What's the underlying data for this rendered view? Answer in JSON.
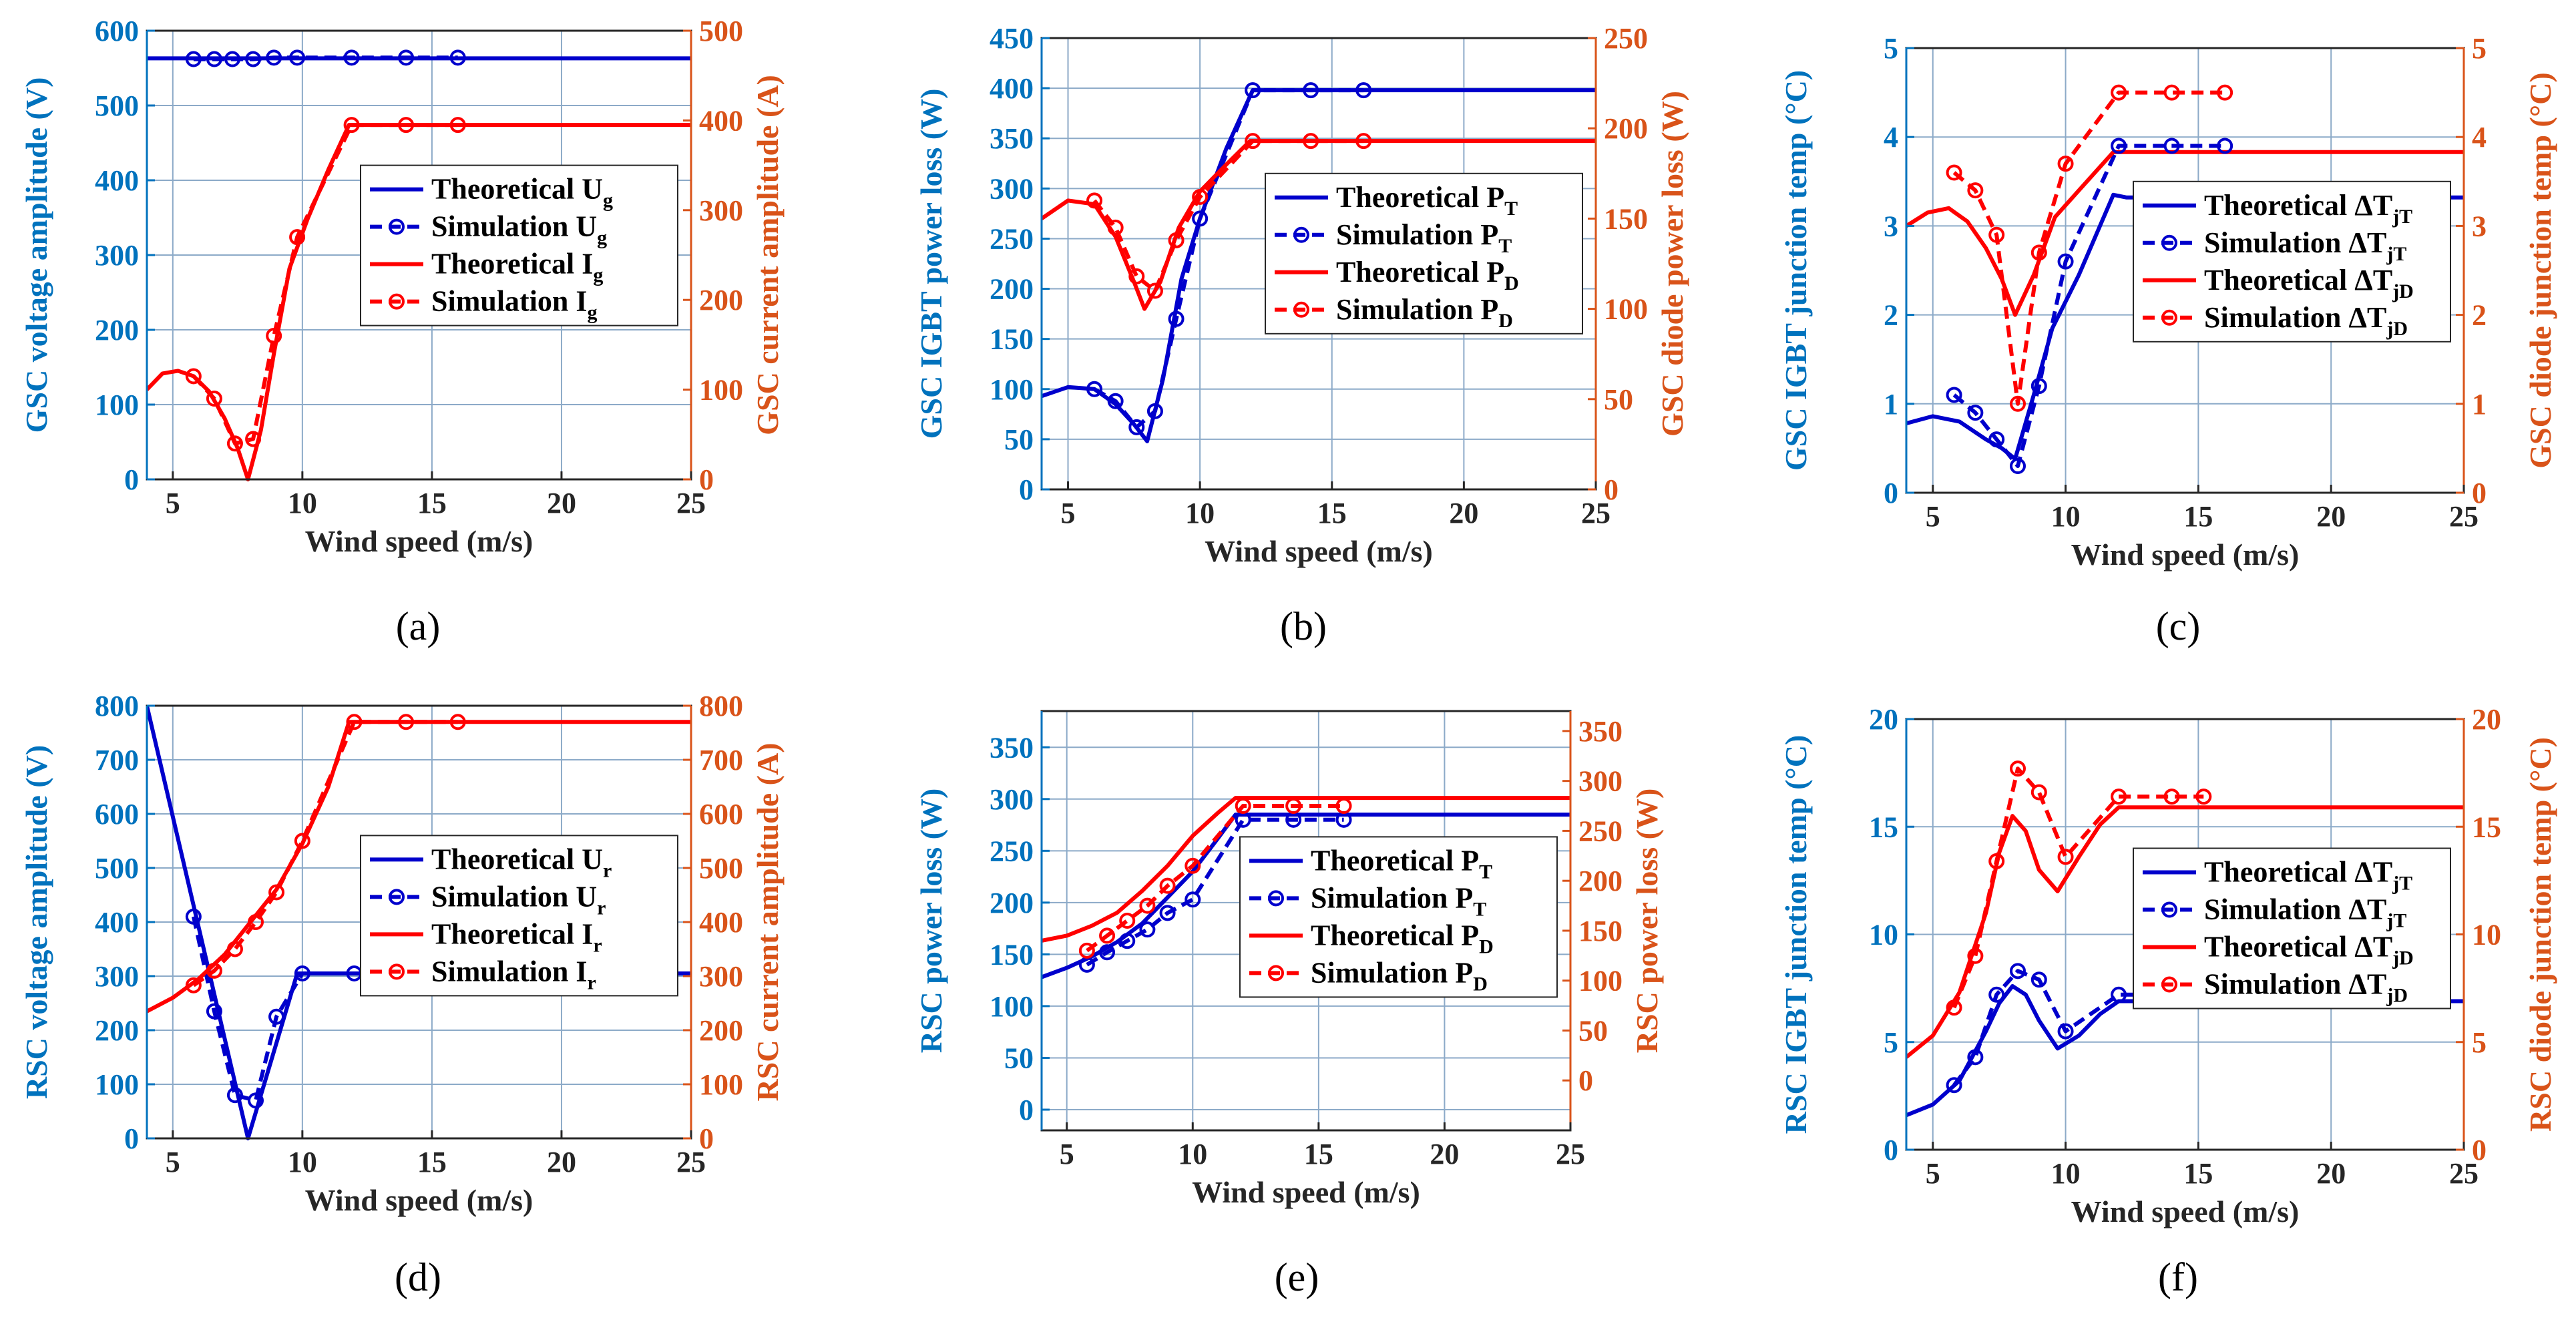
{
  "colors": {
    "blue": "#0000cc",
    "red": "#ff0000",
    "left_axis": "#0072bd",
    "right_axis": "#d95319",
    "grid": "#8caac8"
  },
  "chart_data": [
    {
      "panel": "(a)",
      "type": "line",
      "xlabel": "Wind speed (m/s)",
      "xlim": [
        4,
        25
      ],
      "xticks": [
        5,
        10,
        15,
        20,
        25
      ],
      "ylabel_left": "GSC voltage amplitude (V)",
      "ylim_left": [
        0,
        600
      ],
      "yticks_left": [
        0,
        100,
        200,
        300,
        400,
        500,
        600
      ],
      "ylabel_right": "GSC current amplitude (A)",
      "ylim_right": [
        0,
        500
      ],
      "yticks_right": [
        0,
        100,
        200,
        300,
        400,
        500
      ],
      "legend_position": "center-right",
      "series": [
        {
          "name": "Theoretical U",
          "sub": "g",
          "axis": "left",
          "color": "blue",
          "style": "solid",
          "x": [
            4,
            25
          ],
          "y": [
            563,
            563
          ]
        },
        {
          "name": "Simulation U",
          "sub": "g",
          "axis": "left",
          "color": "blue",
          "style": "dashed",
          "markers": true,
          "x": [
            5.8,
            6.6,
            7.3,
            8.1,
            8.9,
            9.8,
            11.9,
            14,
            16
          ],
          "y": [
            562,
            562,
            562,
            562,
            564,
            564,
            564,
            564,
            564
          ]
        },
        {
          "name": "Theoretical I",
          "sub": "g",
          "axis": "right",
          "color": "red",
          "style": "solid",
          "x": [
            4,
            4.6,
            5.2,
            5.8,
            6.4,
            7,
            7.5,
            7.9,
            8.4,
            8.9,
            9.5,
            10.2,
            11,
            11.8,
            12.5,
            25
          ],
          "y": [
            100,
            118,
            121,
            115,
            98,
            68,
            35,
            0,
            55,
            140,
            235,
            290,
            345,
            395,
            395,
            395
          ]
        },
        {
          "name": "Simulation I",
          "sub": "g",
          "axis": "right",
          "color": "red",
          "style": "dashed",
          "markers": true,
          "x": [
            5.8,
            6.6,
            7.4,
            8.1,
            8.9,
            9.8,
            11.9,
            14,
            16
          ],
          "y": [
            115,
            90,
            40,
            45,
            160,
            270,
            395,
            395,
            395
          ]
        }
      ]
    },
    {
      "panel": "(b)",
      "type": "line",
      "xlabel": "Wind speed (m/s)",
      "xlim": [
        4,
        25
      ],
      "xticks": [
        5,
        10,
        15,
        20,
        25
      ],
      "ylabel_left": "GSC IGBT power loss (W)",
      "ylim_left": [
        0,
        450
      ],
      "yticks_left": [
        0,
        50,
        100,
        150,
        200,
        250,
        300,
        350,
        400,
        450
      ],
      "ylabel_right": "GSC diode power loss (W)",
      "ylim_right": [
        0,
        250
      ],
      "yticks_right": [
        0,
        50,
        100,
        150,
        200,
        250
      ],
      "legend_position": "center-right",
      "series": [
        {
          "name": "Theoretical P",
          "sub": "T",
          "axis": "left",
          "color": "blue",
          "style": "solid",
          "x": [
            4,
            5,
            6,
            6.8,
            7.5,
            8,
            8.6,
            9.3,
            10,
            11,
            12,
            25
          ],
          "y": [
            93,
            102,
            100,
            85,
            65,
            48,
            110,
            210,
            270,
            340,
            398,
            398
          ]
        },
        {
          "name": "Simulation P",
          "sub": "T",
          "axis": "left",
          "color": "blue",
          "style": "dashed",
          "markers": true,
          "x": [
            6,
            6.8,
            7.6,
            8.3,
            9.1,
            10,
            12,
            14.2,
            16.2
          ],
          "y": [
            100,
            88,
            62,
            78,
            170,
            270,
            398,
            398,
            398
          ]
        },
        {
          "name": "Theoretical P",
          "sub": "D",
          "axis": "right",
          "color": "red",
          "style": "solid",
          "x": [
            4,
            5,
            6,
            6.8,
            7.5,
            7.9,
            8.5,
            9.2,
            10,
            11,
            11.9,
            25
          ],
          "y": [
            150,
            160,
            158,
            140,
            115,
            100,
            115,
            145,
            165,
            180,
            193,
            193
          ]
        },
        {
          "name": "Simulation P",
          "sub": "D",
          "axis": "right",
          "color": "red",
          "style": "dashed",
          "markers": true,
          "x": [
            6,
            6.8,
            7.6,
            8.3,
            9.1,
            10,
            12,
            14.2,
            16.2
          ],
          "y": [
            160,
            145,
            118,
            110,
            138,
            162,
            193,
            193,
            193
          ]
        }
      ]
    },
    {
      "panel": "(c)",
      "type": "line",
      "xlabel": "Wind speed (m/s)",
      "xlim": [
        4,
        25
      ],
      "xticks": [
        5,
        10,
        15,
        20,
        25
      ],
      "ylabel_left": "GSC IGBT junction temp (°C)",
      "ylim_left": [
        0,
        5
      ],
      "yticks_left": [
        0,
        1,
        2,
        3,
        4,
        5
      ],
      "ylabel_right": "GSC diode junction temp (°C)",
      "ylim_right": [
        0,
        5
      ],
      "yticks_right": [
        0,
        1,
        2,
        3,
        4,
        5
      ],
      "legend_position": "center-right",
      "series": [
        {
          "name": "Theoretical ΔT",
          "sub": "jT",
          "axis": "left",
          "color": "blue",
          "style": "solid",
          "x": [
            4,
            5,
            6,
            7,
            7.6,
            8.1,
            8.8,
            9.5,
            10.5,
            11.8,
            12.3,
            25
          ],
          "y": [
            0.78,
            0.86,
            0.8,
            0.6,
            0.5,
            0.38,
            1.1,
            1.85,
            2.45,
            3.35,
            3.32,
            3.32
          ]
        },
        {
          "name": "Simulation ΔT",
          "sub": "jT",
          "axis": "left",
          "color": "blue",
          "style": "dashed",
          "markers": true,
          "x": [
            5.8,
            6.6,
            7.4,
            8.2,
            9,
            10,
            12,
            14,
            16
          ],
          "y": [
            1.1,
            0.9,
            0.6,
            0.3,
            1.2,
            2.6,
            3.9,
            3.9,
            3.9
          ]
        },
        {
          "name": "Theoretical ΔT",
          "sub": "jD",
          "axis": "right",
          "color": "red",
          "style": "solid",
          "x": [
            4,
            4.8,
            5.6,
            6.3,
            7,
            7.6,
            8.1,
            8.8,
            9.6,
            10.5,
            11.8,
            25
          ],
          "y": [
            3,
            3.15,
            3.2,
            3.05,
            2.75,
            2.4,
            2.0,
            2.45,
            3.1,
            3.4,
            3.83,
            3.83
          ]
        },
        {
          "name": "Simulation ΔT",
          "sub": "jD",
          "axis": "right",
          "color": "red",
          "style": "dashed",
          "markers": true,
          "x": [
            5.8,
            6.6,
            7.4,
            8.2,
            9,
            10,
            12,
            14,
            16
          ],
          "y": [
            3.6,
            3.4,
            2.9,
            1.0,
            2.7,
            3.7,
            4.5,
            4.5,
            4.5
          ]
        }
      ]
    },
    {
      "panel": "(d)",
      "type": "line",
      "xlabel": "Wind speed (m/s)",
      "xlim": [
        4,
        25
      ],
      "xticks": [
        5,
        10,
        15,
        20,
        25
      ],
      "ylabel_left": "RSC voltage amplitude (V)",
      "ylim_left": [
        0,
        800
      ],
      "yticks_left": [
        0,
        100,
        200,
        300,
        400,
        500,
        600,
        700,
        800
      ],
      "ylabel_right": "RSC current amplitude (A)",
      "ylim_right": [
        0,
        800
      ],
      "yticks_right": [
        0,
        100,
        200,
        300,
        400,
        500,
        600,
        700,
        800
      ],
      "legend_position": "center-right",
      "series": [
        {
          "name": "Theoretical U",
          "sub": "r",
          "axis": "left",
          "color": "blue",
          "style": "solid",
          "x": [
            4,
            7.9,
            9.8,
            25
          ],
          "y": [
            800,
            0,
            305,
            305
          ]
        },
        {
          "name": "Simulation U",
          "sub": "r",
          "axis": "left",
          "color": "blue",
          "style": "dashed",
          "markers": true,
          "x": [
            5.8,
            6.6,
            7.4,
            8.2,
            9,
            10,
            12,
            14,
            16
          ],
          "y": [
            410,
            235,
            80,
            70,
            225,
            305,
            305,
            305,
            305
          ]
        },
        {
          "name": "Theoretical I",
          "sub": "r",
          "axis": "right",
          "color": "red",
          "style": "solid",
          "x": [
            4,
            5,
            6,
            7,
            8,
            9,
            10,
            11,
            11.8,
            25
          ],
          "y": [
            235,
            260,
            295,
            340,
            400,
            460,
            545,
            650,
            770,
            770
          ]
        },
        {
          "name": "Simulation I",
          "sub": "r",
          "axis": "right",
          "color": "red",
          "style": "dashed",
          "markers": true,
          "x": [
            5.8,
            6.6,
            7.4,
            8.2,
            9,
            10,
            12,
            14,
            16
          ],
          "y": [
            283,
            310,
            350,
            400,
            455,
            550,
            770,
            770,
            770
          ]
        }
      ]
    },
    {
      "panel": "(e)",
      "type": "line",
      "xlabel": "Wind speed (m/s)",
      "xlim": [
        4,
        25
      ],
      "xticks": [
        5,
        10,
        15,
        20,
        25
      ],
      "ylabel_left": "RSC power loss (W)",
      "ylim_left": [
        -20,
        385
      ],
      "yticks_left": [
        0,
        50,
        100,
        150,
        200,
        250,
        300,
        350
      ],
      "ylabel_right": "RSC power loss (W)",
      "ylim_right": [
        -50,
        370
      ],
      "yticks_right": [
        0,
        50,
        100,
        150,
        200,
        250,
        300,
        350
      ],
      "legend_position": "center-right",
      "series": [
        {
          "name": "Theoretical P",
          "sub": "T",
          "axis": "left",
          "color": "blue",
          "style": "solid",
          "x": [
            4,
            5,
            6,
            7,
            8,
            9,
            10,
            11,
            11.7,
            25
          ],
          "y": [
            128,
            137,
            148,
            162,
            180,
            205,
            230,
            262,
            285,
            285
          ]
        },
        {
          "name": "Simulation P",
          "sub": "T",
          "axis": "left",
          "color": "blue",
          "style": "dashed",
          "markers": true,
          "x": [
            5.8,
            6.6,
            7.4,
            8.2,
            9,
            10,
            12,
            14,
            16
          ],
          "y": [
            140,
            152,
            163,
            174,
            190,
            203,
            280,
            280,
            280
          ]
        },
        {
          "name": "Theoretical P",
          "sub": "D",
          "axis": "right",
          "color": "red",
          "style": "solid",
          "x": [
            4,
            5,
            6,
            7,
            8,
            9,
            10,
            11,
            11.7,
            25
          ],
          "y": [
            140,
            145,
            155,
            168,
            190,
            215,
            245,
            268,
            283,
            283
          ]
        },
        {
          "name": "Simulation P",
          "sub": "D",
          "axis": "right",
          "color": "red",
          "style": "dashed",
          "markers": true,
          "x": [
            5.8,
            6.6,
            7.4,
            8.2,
            9,
            10,
            12,
            14,
            16
          ],
          "y": [
            130,
            145,
            160,
            175,
            195,
            215,
            275,
            275,
            275
          ]
        }
      ]
    },
    {
      "panel": "(f)",
      "type": "line",
      "xlabel": "Wind speed (m/s)",
      "xlim": [
        4,
        25
      ],
      "xticks": [
        5,
        10,
        15,
        20,
        25
      ],
      "ylabel_left": "RSC IGBT junction temp (°C)",
      "ylim_left": [
        0,
        20
      ],
      "yticks_left": [
        0,
        5,
        10,
        15,
        20
      ],
      "ylabel_right": "RSC diode junction temp (°C)",
      "ylim_right": [
        0,
        20
      ],
      "yticks_right": [
        0,
        5,
        10,
        15,
        20
      ],
      "legend_position": "center-right",
      "series": [
        {
          "name": "Theoretical ΔT",
          "sub": "jT",
          "axis": "left",
          "color": "blue",
          "style": "solid",
          "x": [
            4,
            5,
            6,
            7,
            7.5,
            8,
            8.5,
            9,
            9.7,
            10.5,
            11.3,
            12,
            25
          ],
          "y": [
            1.6,
            2.1,
            3.2,
            5.5,
            6.8,
            7.6,
            7.2,
            6,
            4.7,
            5.3,
            6.3,
            6.9,
            6.9
          ]
        },
        {
          "name": "Simulation ΔT",
          "sub": "jT",
          "axis": "left",
          "color": "blue",
          "style": "dashed",
          "markers": true,
          "x": [
            5.8,
            6.6,
            7.4,
            8.2,
            9,
            10,
            12,
            14,
            15.2
          ],
          "y": [
            3,
            4.3,
            7.2,
            8.3,
            7.9,
            5.5,
            7.2,
            7.2,
            7.4
          ]
        },
        {
          "name": "Theoretical ΔT",
          "sub": "jD",
          "axis": "right",
          "color": "red",
          "style": "solid",
          "x": [
            4,
            5,
            6,
            7,
            7.5,
            8,
            8.5,
            9,
            9.7,
            10.5,
            11.3,
            12,
            25
          ],
          "y": [
            4.3,
            5.3,
            7.3,
            11,
            13.8,
            15.5,
            14.8,
            13,
            12,
            13.6,
            15.1,
            15.9,
            15.9
          ]
        },
        {
          "name": "Simulation ΔT",
          "sub": "jD",
          "axis": "right",
          "color": "red",
          "style": "dashed",
          "markers": true,
          "x": [
            5.8,
            6.6,
            7.4,
            8.2,
            9,
            10,
            12,
            14,
            15.2
          ],
          "y": [
            6.6,
            9,
            13.4,
            17.7,
            16.6,
            13.6,
            16.4,
            16.4,
            16.4
          ]
        }
      ]
    }
  ]
}
